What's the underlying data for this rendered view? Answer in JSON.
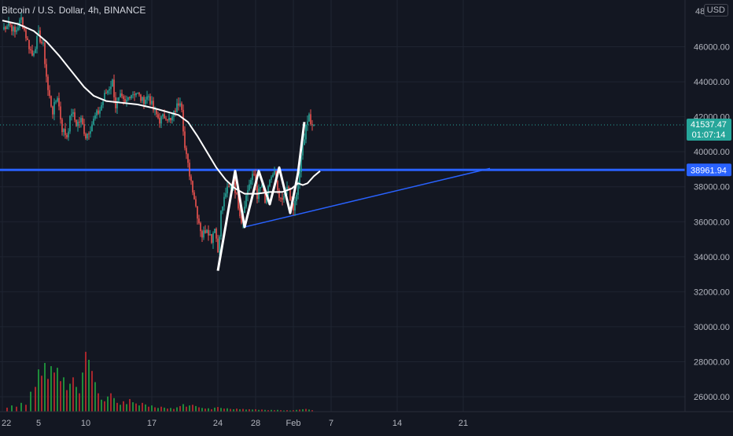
{
  "header": {
    "title": "Bitcoin / U.S. Dollar, 4h, BINANCE",
    "currency": "USD"
  },
  "price_labels": {
    "last_price": "41537.47",
    "countdown": "01:07:14",
    "level": "38961.94"
  },
  "colors": {
    "background": "#131722",
    "up": "#26a69a",
    "down": "#ef5350",
    "level_line": "#2962ff",
    "trendline": "#2962ff",
    "pattern": "#ffffff",
    "moving_average": "#ffffff",
    "volume_up": "#1e8c3a",
    "volume_down": "#a8262c"
  },
  "chart_data": {
    "type": "candlestick",
    "title": "Bitcoin / U.S. Dollar, 4h, BINANCE",
    "exchange": "BINANCE",
    "interval": "4h",
    "y_axis": {
      "min": 24800,
      "max": 48000,
      "ticks": [
        26000,
        28000,
        30000,
        32000,
        34000,
        36000,
        38000,
        40000,
        42000,
        44000,
        46000
      ],
      "tick_labels": [
        "26000.00",
        "28000.00",
        "30000.00",
        "32000.00",
        "34000.00",
        "36000.00",
        "38000.00",
        "40000.00",
        "42000.00",
        "44000.00",
        "46000.00"
      ],
      "top_label": "48"
    },
    "x_axis": {
      "tick_labels": [
        "22",
        "5",
        "10",
        "17",
        "24",
        "28",
        "Feb",
        "7",
        "14",
        "21"
      ],
      "tick_bar_index": [
        0,
        23,
        53,
        95,
        137,
        161,
        185,
        209,
        251,
        293
      ]
    },
    "bars_per_day": 6,
    "grid": true,
    "last_price": 41537.47,
    "horizontal_level": 38961.94,
    "ohlc_anchors": [
      [
        0,
        47000
      ],
      [
        4,
        47400
      ],
      [
        8,
        46800
      ],
      [
        12,
        47600
      ],
      [
        16,
        46300
      ],
      [
        19,
        45500
      ],
      [
        23,
        46700
      ],
      [
        26,
        46000
      ],
      [
        29,
        43500
      ],
      [
        32,
        42300
      ],
      [
        35,
        43200
      ],
      [
        38,
        41300
      ],
      [
        41,
        40900
      ],
      [
        44,
        42300
      ],
      [
        47,
        41600
      ],
      [
        50,
        41800
      ],
      [
        53,
        40900
      ],
      [
        56,
        41400
      ],
      [
        59,
        42000
      ],
      [
        62,
        42400
      ],
      [
        65,
        43200
      ],
      [
        68,
        43700
      ],
      [
        70,
        44000
      ],
      [
        72,
        42600
      ],
      [
        75,
        43100
      ],
      [
        78,
        42700
      ],
      [
        81,
        43300
      ],
      [
        85,
        43400
      ],
      [
        89,
        42900
      ],
      [
        93,
        43200
      ],
      [
        96,
        42400
      ],
      [
        100,
        41800
      ],
      [
        104,
        42100
      ],
      [
        107,
        41700
      ],
      [
        110,
        42400
      ],
      [
        113,
        43000
      ],
      [
        114,
        42600
      ],
      [
        116,
        40200
      ],
      [
        118,
        39200
      ],
      [
        121,
        37900
      ],
      [
        124,
        36400
      ],
      [
        127,
        35200
      ],
      [
        130,
        35700
      ],
      [
        133,
        35000
      ],
      [
        135,
        35800
      ],
      [
        137,
        34300
      ],
      [
        139,
        36500
      ],
      [
        142,
        37700
      ],
      [
        145,
        38000
      ],
      [
        147,
        38300
      ],
      [
        149,
        37400
      ],
      [
        152,
        36100
      ],
      [
        154,
        37100
      ],
      [
        157,
        38200
      ],
      [
        160,
        38700
      ],
      [
        162,
        37500
      ],
      [
        165,
        38100
      ],
      [
        167,
        37000
      ],
      [
        169,
        37800
      ],
      [
        171,
        38600
      ],
      [
        173,
        38800
      ],
      [
        175,
        37600
      ],
      [
        177,
        37100
      ],
      [
        179,
        37300
      ],
      [
        181,
        38200
      ],
      [
        183,
        37200
      ],
      [
        185,
        36700
      ],
      [
        187,
        37400
      ],
      [
        190,
        39600
      ],
      [
        193,
        41600
      ],
      [
        195,
        41900
      ],
      [
        196,
        41500
      ],
      [
        197,
        41700
      ],
      [
        198,
        41537.47
      ]
    ],
    "moving_average": [
      [
        0,
        47500
      ],
      [
        10,
        47300
      ],
      [
        20,
        46900
      ],
      [
        28,
        46300
      ],
      [
        36,
        45500
      ],
      [
        44,
        44600
      ],
      [
        52,
        43700
      ],
      [
        58,
        43200
      ],
      [
        66,
        42900
      ],
      [
        76,
        42800
      ],
      [
        86,
        42700
      ],
      [
        96,
        42500
      ],
      [
        104,
        42300
      ],
      [
        112,
        42100
      ],
      [
        118,
        41700
      ],
      [
        124,
        40900
      ],
      [
        130,
        40000
      ],
      [
        136,
        39100
      ],
      [
        142,
        38400
      ],
      [
        148,
        37900
      ],
      [
        154,
        37600
      ],
      [
        162,
        37600
      ],
      [
        170,
        37700
      ],
      [
        178,
        37700
      ],
      [
        184,
        37900
      ],
      [
        188,
        38200
      ],
      [
        191,
        38100
      ],
      [
        194,
        38200
      ],
      [
        198,
        38600
      ],
      [
        202,
        38900
      ]
    ],
    "pattern_lines": [
      [
        137,
        33200
      ],
      [
        148,
        38900
      ],
      [
        154,
        35700
      ],
      [
        163,
        38900
      ],
      [
        170,
        37000
      ],
      [
        176,
        39100
      ],
      [
        183,
        36500
      ],
      [
        188,
        38800
      ],
      [
        192,
        41700
      ]
    ],
    "trendline": {
      "from": [
        154,
        35700
      ],
      "to": [
        310,
        39050
      ]
    },
    "volume": {
      "max_value": 32000,
      "bars": [
        [
          3,
          1500,
          "down"
        ],
        [
          6,
          2200,
          "up"
        ],
        [
          9,
          1800,
          "down"
        ],
        [
          12,
          3000,
          "up"
        ],
        [
          15,
          2400,
          "down"
        ],
        [
          18,
          6500,
          "up"
        ],
        [
          21,
          8000,
          "down"
        ],
        [
          23,
          13500,
          "up"
        ],
        [
          25,
          11500,
          "down"
        ],
        [
          27,
          15500,
          "up"
        ],
        [
          29,
          10500,
          "down"
        ],
        [
          31,
          14500,
          "up"
        ],
        [
          33,
          12500,
          "down"
        ],
        [
          35,
          14000,
          "up"
        ],
        [
          37,
          9800,
          "down"
        ],
        [
          39,
          11000,
          "up"
        ],
        [
          41,
          7000,
          "down"
        ],
        [
          43,
          9000,
          "up"
        ],
        [
          45,
          11000,
          "down"
        ],
        [
          47,
          8000,
          "up"
        ],
        [
          49,
          6000,
          "down"
        ],
        [
          51,
          12500,
          "up"
        ],
        [
          53,
          19000,
          "down"
        ],
        [
          55,
          16500,
          "up"
        ],
        [
          57,
          13000,
          "down"
        ],
        [
          59,
          9500,
          "up"
        ],
        [
          61,
          6000,
          "down"
        ],
        [
          63,
          4000,
          "up"
        ],
        [
          65,
          3500,
          "down"
        ],
        [
          67,
          5000,
          "up"
        ],
        [
          69,
          6000,
          "down"
        ],
        [
          71,
          4500,
          "up"
        ],
        [
          73,
          3000,
          "down"
        ],
        [
          75,
          2400,
          "up"
        ],
        [
          77,
          3500,
          "down"
        ],
        [
          79,
          2600,
          "up"
        ],
        [
          81,
          4200,
          "down"
        ],
        [
          83,
          3200,
          "up"
        ],
        [
          85,
          2800,
          "down"
        ],
        [
          87,
          2200,
          "up"
        ],
        [
          89,
          3000,
          "down"
        ],
        [
          91,
          2500,
          "up"
        ],
        [
          93,
          1800,
          "down"
        ],
        [
          95,
          2200,
          "up"
        ],
        [
          97,
          1600,
          "down"
        ],
        [
          99,
          1400,
          "up"
        ],
        [
          101,
          1800,
          "down"
        ],
        [
          103,
          1500,
          "up"
        ],
        [
          105,
          1200,
          "down"
        ],
        [
          107,
          1400,
          "up"
        ],
        [
          109,
          1100,
          "down"
        ],
        [
          111,
          1600,
          "up"
        ],
        [
          113,
          2000,
          "down"
        ],
        [
          115,
          2600,
          "up"
        ],
        [
          117,
          1800,
          "down"
        ],
        [
          119,
          2200,
          "up"
        ],
        [
          121,
          2400,
          "down"
        ],
        [
          123,
          2000,
          "up"
        ],
        [
          125,
          1600,
          "down"
        ],
        [
          127,
          1400,
          "up"
        ],
        [
          129,
          1200,
          "down"
        ],
        [
          131,
          1300,
          "up"
        ],
        [
          133,
          1000,
          "down"
        ],
        [
          135,
          1500,
          "up"
        ],
        [
          137,
          1700,
          "down"
        ],
        [
          139,
          1400,
          "up"
        ],
        [
          141,
          1200,
          "down"
        ],
        [
          143,
          1300,
          "up"
        ],
        [
          145,
          1100,
          "down"
        ],
        [
          147,
          1000,
          "up"
        ],
        [
          149,
          1200,
          "down"
        ],
        [
          151,
          1000,
          "up"
        ],
        [
          153,
          1100,
          "down"
        ],
        [
          155,
          900,
          "up"
        ],
        [
          157,
          1000,
          "down"
        ],
        [
          159,
          900,
          "up"
        ],
        [
          161,
          1000,
          "down"
        ],
        [
          163,
          800,
          "up"
        ],
        [
          165,
          900,
          "down"
        ],
        [
          167,
          800,
          "up"
        ],
        [
          169,
          700,
          "down"
        ],
        [
          171,
          800,
          "up"
        ],
        [
          173,
          700,
          "down"
        ],
        [
          175,
          800,
          "up"
        ],
        [
          177,
          700,
          "down"
        ],
        [
          179,
          600,
          "up"
        ],
        [
          181,
          700,
          "down"
        ],
        [
          183,
          600,
          "up"
        ],
        [
          185,
          700,
          "down"
        ],
        [
          187,
          800,
          "up"
        ],
        [
          189,
          900,
          "down"
        ],
        [
          191,
          1000,
          "up"
        ],
        [
          193,
          1100,
          "down"
        ],
        [
          195,
          900,
          "up"
        ],
        [
          197,
          700,
          "down"
        ]
      ]
    }
  }
}
